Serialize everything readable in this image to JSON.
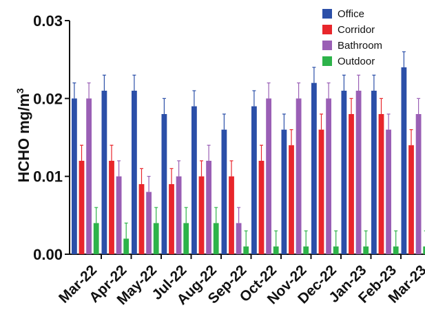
{
  "chart_data": {
    "type": "bar",
    "ylabel_main": "HCHO mg/m",
    "ylabel_sup": "3",
    "ylim": [
      0,
      0.03
    ],
    "yticks": [
      0,
      0.01,
      0.02,
      0.03
    ],
    "ytick_labels": [
      "0.00",
      "0.01",
      "0.02",
      "0.03"
    ],
    "categories": [
      "Mar-22",
      "Apr-22",
      "May-22",
      "Jul-22",
      "Aug-22",
      "Sep-22",
      "Oct-22",
      "Nov-22",
      "Dec-22",
      "Jan-23",
      "Feb-23",
      "Mar-23"
    ],
    "legend_position": "top-right",
    "error_bars": true,
    "series": [
      {
        "name": "Office",
        "color": "#2b4fa8",
        "values": [
          0.02,
          0.021,
          0.021,
          0.018,
          0.019,
          0.016,
          0.019,
          0.016,
          0.022,
          0.021,
          0.021,
          0.024
        ],
        "errors": [
          0.002,
          0.002,
          0.002,
          0.002,
          0.002,
          0.002,
          0.002,
          0.002,
          0.002,
          0.002,
          0.002,
          0.002
        ]
      },
      {
        "name": "Corridor",
        "color": "#e8262b",
        "values": [
          0.012,
          0.012,
          0.009,
          0.009,
          0.01,
          0.01,
          0.012,
          0.014,
          0.016,
          0.018,
          0.018,
          0.014
        ],
        "errors": [
          0.002,
          0.002,
          0.002,
          0.002,
          0.002,
          0.002,
          0.002,
          0.002,
          0.002,
          0.002,
          0.002,
          0.002
        ]
      },
      {
        "name": "Bathroom",
        "color": "#9a5fb5",
        "values": [
          0.02,
          0.01,
          0.008,
          0.01,
          0.012,
          0.004,
          0.02,
          0.02,
          0.02,
          0.021,
          0.016,
          0.018
        ],
        "errors": [
          0.002,
          0.002,
          0.002,
          0.002,
          0.002,
          0.002,
          0.002,
          0.002,
          0.002,
          0.002,
          0.002,
          0.002
        ]
      },
      {
        "name": "Outdoor",
        "color": "#2db34a",
        "values": [
          0.004,
          0.002,
          0.004,
          0.004,
          0.004,
          0.001,
          0.001,
          0.001,
          0.001,
          0.001,
          0.001,
          0.001
        ],
        "errors": [
          0.002,
          0.002,
          0.002,
          0.002,
          0.002,
          0.002,
          0.002,
          0.002,
          0.002,
          0.002,
          0.002,
          0.002
        ]
      }
    ]
  }
}
